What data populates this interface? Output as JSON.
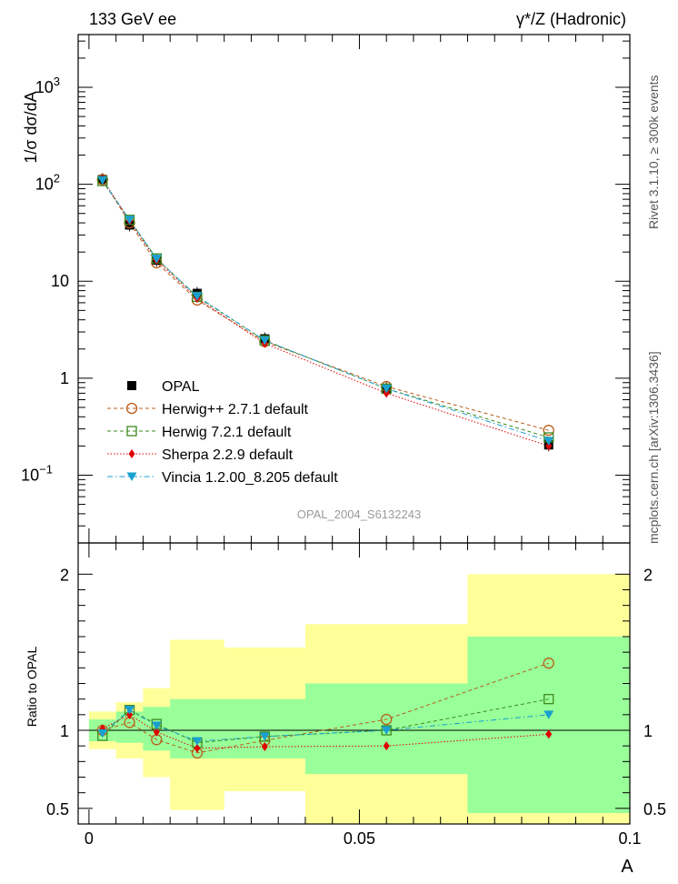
{
  "header": {
    "left_label": "133 GeV ee",
    "right_label": "γ*/Z (Hadronic)"
  },
  "side_labels": {
    "rivet": "Rivet 3.1.10, ≥ 300k events",
    "mcplots": "mcplots.cern.ch [arXiv:1306.3436]"
  },
  "analysis_id": "OPAL_2004_S6132243",
  "chart_data": [
    {
      "type": "scatter",
      "panel": "main",
      "ylabel": "1/σ dσ/dA",
      "yscale": "log",
      "ylim": [
        0.02,
        3500
      ],
      "xlim": [
        -0.002,
        0.1
      ],
      "yticks": [
        {
          "value": 0.1,
          "label": "10",
          "sup": "−1"
        },
        {
          "value": 1,
          "label": "1",
          "sup": ""
        },
        {
          "value": 10,
          "label": "10",
          "sup": ""
        },
        {
          "value": 100,
          "label": "10",
          "sup": "2"
        },
        {
          "value": 1000,
          "label": "10",
          "sup": "3"
        }
      ],
      "legend_position": "bottom-left",
      "bins": [
        [
          0.0,
          0.005
        ],
        [
          0.005,
          0.01
        ],
        [
          0.01,
          0.015
        ],
        [
          0.015,
          0.025
        ],
        [
          0.025,
          0.04
        ],
        [
          0.04,
          0.07
        ],
        [
          0.07,
          0.1
        ]
      ],
      "x": [
        0.0025,
        0.0075,
        0.0125,
        0.02,
        0.0325,
        0.055,
        0.085
      ],
      "series": [
        {
          "name": "OPAL",
          "color": "#000000",
          "marker": "square-filled",
          "values": [
            112,
            38,
            16.5,
            7.5,
            2.55,
            0.78,
            0.205
          ]
        },
        {
          "name": "Herwig++ 2.7.1 default",
          "color": "#b85c1a",
          "marker": "circle-open",
          "values": [
            112,
            40,
            15.5,
            6.4,
            2.38,
            0.82,
            0.29
          ]
        },
        {
          "name": "Herwig 7.2.1 default",
          "color": "#3c8a1e",
          "marker": "square-open",
          "values": [
            108,
            43,
            17.2,
            6.9,
            2.45,
            0.78,
            0.245
          ]
        },
        {
          "name": "Sherpa 2.2.9 default",
          "color": "#e00000",
          "marker": "diamond-filled",
          "values": [
            113,
            42,
            16.5,
            6.65,
            2.28,
            0.7,
            0.2
          ]
        },
        {
          "name": "Vincia 1.2.00_8.205 default",
          "color": "#1aa0d0",
          "marker": "triangle-down-filled",
          "values": [
            110,
            43,
            17.0,
            7.0,
            2.45,
            0.78,
            0.225
          ]
        }
      ]
    },
    {
      "type": "scatter",
      "panel": "ratio",
      "ylabel": "Ratio to OPAL",
      "xlabel": "A",
      "ylim": [
        0.4,
        2.2
      ],
      "xlim": [
        -0.002,
        0.1
      ],
      "yticks": [
        0.5,
        1,
        2
      ],
      "ytick_labels": [
        "0.5",
        "1",
        "2"
      ],
      "xticks": [
        0,
        0.05,
        0.1
      ],
      "xtick_labels": [
        "0",
        "0.05",
        "0.1"
      ],
      "bands": {
        "green": {
          "color": "#99ff99",
          "lo": [
            0.93,
            0.92,
            0.87,
            0.82,
            0.82,
            0.72,
            0.47
          ],
          "hi": [
            1.07,
            1.12,
            1.15,
            1.2,
            1.2,
            1.3,
            1.6
          ]
        },
        "yellow": {
          "color": "#ffff99",
          "lo": [
            0.88,
            0.82,
            0.7,
            0.49,
            0.61,
            0.35,
            0.35
          ],
          "hi": [
            1.12,
            1.18,
            1.27,
            1.58,
            1.53,
            1.68,
            2.0
          ]
        }
      },
      "series": [
        {
          "name": "Herwig++ 2.7.1 default",
          "color": "#b85c1a",
          "marker": "circle-open",
          "values": [
            1.0,
            1.05,
            0.94,
            0.855,
            0.935,
            1.07,
            1.43
          ]
        },
        {
          "name": "Herwig 7.2.1 default",
          "color": "#3c8a1e",
          "marker": "square-open",
          "values": [
            0.965,
            1.13,
            1.04,
            0.92,
            0.96,
            1.0,
            1.2
          ]
        },
        {
          "name": "Sherpa 2.2.9 default",
          "color": "#e00000",
          "marker": "diamond-filled",
          "values": [
            1.01,
            1.1,
            0.99,
            0.885,
            0.895,
            0.9,
            0.975
          ]
        },
        {
          "name": "Vincia 1.2.00_8.205 default",
          "color": "#1aa0d0",
          "marker": "triangle-down-filled",
          "values": [
            0.98,
            1.13,
            1.03,
            0.93,
            0.96,
            1.0,
            1.1
          ]
        }
      ]
    }
  ]
}
